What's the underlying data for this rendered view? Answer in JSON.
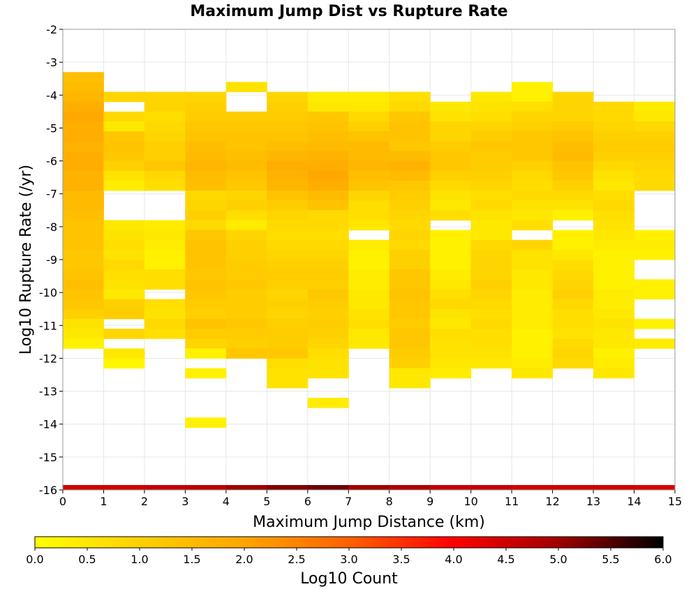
{
  "chart_data": {
    "type": "heatmap",
    "title": "Maximum Jump Dist vs Rupture Rate",
    "xlabel": "Maximum Jump Distance (km)",
    "ylabel": "Log10 Rupture Rate (/yr)",
    "xlim": [
      0,
      15
    ],
    "ylim": [
      -16,
      -2
    ],
    "x_ticks": [
      0,
      1,
      2,
      3,
      4,
      5,
      6,
      7,
      8,
      9,
      10,
      11,
      12,
      13,
      14,
      15
    ],
    "y_ticks": [
      -16,
      -15,
      -14,
      -13,
      -12,
      -11,
      -10,
      -9,
      -8,
      -7,
      -6,
      -5,
      -4,
      -3,
      -2
    ],
    "grid": true,
    "bin_x_width": 1,
    "bin_y_height": 0.3,
    "colorbar": {
      "label": "Log10 Count",
      "range": [
        0,
        6
      ],
      "ticks": [
        0.0,
        0.5,
        1.0,
        1.5,
        2.0,
        2.5,
        3.0,
        3.5,
        4.0,
        4.5,
        5.0,
        5.5,
        6.0
      ],
      "tick_labels": [
        "0.0",
        "0.5",
        "1.0",
        "1.5",
        "2.0",
        "2.5",
        "3.0",
        "3.5",
        "4.0",
        "4.5",
        "5.0",
        "5.5",
        "6.0"
      ],
      "colors": [
        "#ffff00",
        "#ffd000",
        "#ffa500",
        "#ff6000",
        "#ff0000",
        "#a00000",
        "#000000"
      ]
    },
    "bottom_band": {
      "y": -16,
      "values": [
        4.5,
        4.5,
        4.6,
        4.7,
        5.0,
        5.2,
        5.3,
        5.0,
        4.8,
        4.6,
        4.6,
        4.5,
        4.5,
        4.5,
        4.4
      ]
    },
    "columns": [
      {
        "x": 0,
        "y_top": -3.3,
        "values": [
          1.4,
          1.5,
          1.6,
          1.8,
          1.9,
          1.8,
          1.8,
          1.7,
          1.8,
          1.8,
          1.7,
          1.7,
          1.5,
          1.5,
          1.4,
          1.3,
          1.3,
          1.3,
          1.2,
          1.2,
          1.3,
          1.4,
          1.3,
          1.2,
          1.0,
          0.6,
          0.5,
          0.3
        ]
      },
      {
        "x": 1,
        "y_top": -3.9,
        "values": [
          0.9,
          null,
          0.8,
          0.5,
          1.2,
          1.3,
          1.2,
          1.0,
          0.6,
          0.4,
          null,
          null,
          null,
          0.5,
          0.6,
          0.7,
          0.6,
          0.8,
          0.7,
          0.6,
          0.5,
          1.0,
          1.1,
          null,
          0.9,
          null,
          0.5,
          0.2
        ]
      },
      {
        "x": 2,
        "y_top": -3.9,
        "values": [
          0.9,
          0.9,
          0.7,
          0.8,
          0.9,
          1.0,
          1.0,
          1.2,
          0.8,
          0.7,
          null,
          null,
          null,
          0.4,
          0.5,
          0.4,
          0.3,
          0.3,
          0.7,
          0.7,
          null,
          0.7,
          0.6,
          0.8,
          0.7
        ]
      },
      {
        "x": 3,
        "y_top": -3.9,
        "values": [
          0.9,
          1.0,
          1.1,
          1.2,
          1.3,
          1.4,
          1.5,
          1.6,
          1.5,
          1.4,
          0.8,
          0.9,
          1.0,
          0.8,
          1.2,
          1.3,
          1.3,
          1.3,
          1.2,
          1.3,
          1.2,
          1.1,
          1.0,
          1.3,
          1.1,
          0.9,
          0.3,
          null,
          0.3,
          null,
          null,
          null,
          null,
          0.3
        ]
      },
      {
        "x": 4,
        "y_top": -3.6,
        "values": [
          0.6,
          null,
          null,
          1.1,
          1.2,
          1.3,
          1.3,
          1.4,
          1.5,
          1.3,
          1.2,
          0.9,
          1.0,
          0.7,
          0.4,
          0.9,
          1.0,
          1.0,
          1.1,
          1.1,
          1.2,
          1.1,
          1.1,
          1.1,
          1.2,
          1.1,
          1.0,
          1.2
        ]
      },
      {
        "x": 5,
        "y_top": -3.9,
        "values": [
          0.9,
          1.0,
          1.1,
          1.2,
          1.3,
          1.4,
          1.6,
          1.8,
          1.7,
          1.6,
          1.3,
          1.1,
          0.9,
          0.8,
          0.7,
          0.8,
          0.9,
          1.0,
          1.1,
          1.0,
          0.9,
          1.0,
          0.9,
          1.0,
          1.1,
          1.1,
          1.2,
          0.7,
          0.6,
          0.6
        ]
      },
      {
        "x": 6,
        "y_top": -3.9,
        "values": [
          0.4,
          0.5,
          1.2,
          1.3,
          1.4,
          1.5,
          1.7,
          1.8,
          1.9,
          1.8,
          1.5,
          1.3,
          0.8,
          0.8,
          0.7,
          0.8,
          0.9,
          1.0,
          1.1,
          1.0,
          1.2,
          1.1,
          1.0,
          1.1,
          1.0,
          0.9,
          0.7,
          0.6,
          0.6,
          null,
          null,
          0.4
        ]
      },
      {
        "x": 7,
        "y_top": -3.9,
        "values": [
          0.4,
          0.5,
          0.8,
          1.0,
          1.3,
          1.5,
          1.5,
          1.6,
          1.4,
          1.3,
          0.9,
          0.7,
          0.7,
          0.5,
          null,
          0.4,
          0.3,
          0.3,
          0.4,
          0.4,
          0.5,
          0.5,
          0.6,
          0.7,
          0.5,
          0.5
        ]
      },
      {
        "x": 8,
        "y_top": -3.9,
        "values": [
          0.7,
          0.8,
          1.2,
          1.3,
          1.3,
          1.2,
          1.5,
          1.7,
          1.5,
          1.2,
          1.1,
          1.0,
          0.9,
          0.8,
          0.9,
          0.8,
          1.0,
          1.0,
          1.2,
          1.2,
          1.3,
          1.2,
          1.2,
          1.1,
          1.2,
          1.2,
          1.1,
          1.0,
          0.5,
          0.5
        ]
      },
      {
        "x": 9,
        "y_top": -4.2,
        "values": [
          0.5,
          0.6,
          0.9,
          0.9,
          1.1,
          1.2,
          1.2,
          1.0,
          0.8,
          0.6,
          0.5,
          0.7,
          null,
          0.3,
          0.3,
          0.3,
          0.3,
          0.4,
          0.5,
          0.7,
          0.8,
          0.6,
          0.5,
          0.7,
          0.6,
          0.6,
          0.5,
          0.4
        ]
      },
      {
        "x": 10,
        "y_top": -3.9,
        "values": [
          0.5,
          0.6,
          0.7,
          0.9,
          1.1,
          1.2,
          1.1,
          1.1,
          1.0,
          0.9,
          0.7,
          0.8,
          0.6,
          0.5,
          0.5,
          0.8,
          0.9,
          0.9,
          0.9,
          1.0,
          0.9,
          0.8,
          0.7,
          0.8,
          0.7,
          0.7,
          0.6,
          0.5,
          null
        ]
      },
      {
        "x": 11,
        "y_top": -3.6,
        "values": [
          0.3,
          0.3,
          0.7,
          0.9,
          1.0,
          1.2,
          1.2,
          1.2,
          1.0,
          0.8,
          0.7,
          0.8,
          0.6,
          0.5,
          0.7,
          null,
          0.9,
          0.6,
          0.6,
          0.5,
          0.5,
          0.4,
          0.4,
          0.4,
          0.4,
          0.3,
          0.3,
          0.3,
          0.4,
          0.5
        ]
      },
      {
        "x": 12,
        "y_top": -3.9,
        "values": [
          0.9,
          0.9,
          0.9,
          1.1,
          1.3,
          1.4,
          1.5,
          1.3,
          1.2,
          1.0,
          0.8,
          0.6,
          0.3,
          null,
          0.3,
          0.3,
          0.5,
          0.7,
          0.8,
          0.9,
          1.0,
          0.8,
          0.7,
          0.7,
          0.6,
          0.8,
          0.9,
          0.8
        ]
      },
      {
        "x": 13,
        "y_top": -4.2,
        "values": [
          0.8,
          0.8,
          0.9,
          1.0,
          1.1,
          1.0,
          0.8,
          0.6,
          0.5,
          0.7,
          0.8,
          0.7,
          0.6,
          0.5,
          0.4,
          0.3,
          0.3,
          0.3,
          0.3,
          0.4,
          0.4,
          0.5,
          0.6,
          0.5,
          0.5,
          0.3,
          0.4,
          0.5
        ]
      },
      {
        "x": 14,
        "y_top": -4.2,
        "values": [
          0.4,
          0.5,
          0.8,
          1.0,
          1.1,
          1.0,
          0.9,
          0.8,
          0.8,
          null,
          null,
          null,
          null,
          0.3,
          0.4,
          0.3,
          null,
          null,
          0.3,
          0.3,
          null,
          null,
          0.3,
          null,
          0.4
        ]
      }
    ]
  }
}
